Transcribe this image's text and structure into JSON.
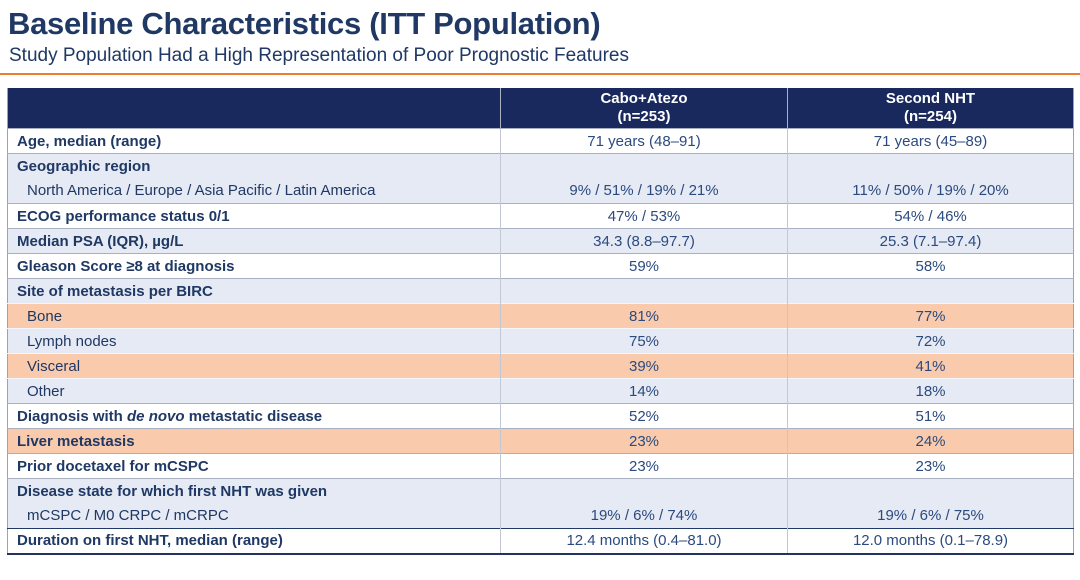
{
  "title": "Baseline Characteristics (ITT Population)",
  "subtitle": "Study Population Had a High Representation of Poor Prognostic Features",
  "colors": {
    "header_navy": "#19295E",
    "title_text": "#1F3864",
    "value_text": "#2B4A7F",
    "band_blue": "#E5EAF4",
    "band_orange": "#F9CBAC",
    "divider_orange": "#ED7D31"
  },
  "table": {
    "columns": [
      {
        "line1": "Cabo+Atezo",
        "line2": "(n=253)"
      },
      {
        "line1": "Second NHT",
        "line2": "(n=254)"
      }
    ],
    "rows": [
      {
        "label_parts": [
          {
            "text": "Age, median (range)"
          }
        ],
        "bold": true,
        "indent": false,
        "bg": "white",
        "values": [
          "71 years (48–91)",
          "71 years (45–89)"
        ]
      },
      {
        "label_parts": [
          {
            "text": "Geographic region"
          }
        ],
        "bold": true,
        "indent": false,
        "bg": "blue",
        "values": [
          "",
          ""
        ]
      },
      {
        "label_parts": [
          {
            "text": "North America / Europe / Asia Pacific / Latin America"
          }
        ],
        "bold": false,
        "indent": true,
        "bg": "blue",
        "continuation": true,
        "values": [
          "9% / 51% / 19% / 21%",
          "11% / 50% / 19% / 20%"
        ]
      },
      {
        "label_parts": [
          {
            "text": "ECOG performance status 0/1"
          }
        ],
        "bold": true,
        "indent": false,
        "bg": "white",
        "values": [
          "47% / 53%",
          "54% / 46%"
        ]
      },
      {
        "label_parts": [
          {
            "text": "Median PSA (IQR), µg/L"
          }
        ],
        "bold": true,
        "indent": false,
        "bg": "blue",
        "values": [
          "34.3 (8.8–97.7)",
          "25.3 (7.1–97.4)"
        ]
      },
      {
        "label_parts": [
          {
            "text": "Gleason Score ≥8 at diagnosis"
          }
        ],
        "bold": true,
        "indent": false,
        "bg": "white",
        "values": [
          "59%",
          "58%"
        ]
      },
      {
        "label_parts": [
          {
            "text": "Site of metastasis per BIRC"
          }
        ],
        "bold": true,
        "indent": false,
        "bg": "blue",
        "values": [
          "",
          ""
        ]
      },
      {
        "label_parts": [
          {
            "text": "Bone"
          }
        ],
        "bold": false,
        "indent": true,
        "bg": "orange",
        "group": "metastasis",
        "values": [
          "81%",
          "77%"
        ]
      },
      {
        "label_parts": [
          {
            "text": "Lymph nodes"
          }
        ],
        "bold": false,
        "indent": true,
        "bg": "blue",
        "group": "metastasis",
        "values": [
          "75%",
          "72%"
        ]
      },
      {
        "label_parts": [
          {
            "text": "Visceral"
          }
        ],
        "bold": false,
        "indent": true,
        "bg": "orange",
        "group": "metastasis",
        "values": [
          "39%",
          "41%"
        ]
      },
      {
        "label_parts": [
          {
            "text": "Other"
          }
        ],
        "bold": false,
        "indent": true,
        "bg": "blue",
        "group": "metastasis",
        "values": [
          "14%",
          "18%"
        ]
      },
      {
        "label_parts": [
          {
            "text": "Diagnosis with "
          },
          {
            "text": "de novo",
            "italic": true
          },
          {
            "text": " metastatic disease"
          }
        ],
        "bold": true,
        "indent": false,
        "bg": "white",
        "values": [
          "52%",
          "51%"
        ]
      },
      {
        "label_parts": [
          {
            "text": "Liver metastasis"
          }
        ],
        "bold": true,
        "indent": false,
        "bg": "orange",
        "values": [
          "23%",
          "24%"
        ]
      },
      {
        "label_parts": [
          {
            "text": "Prior docetaxel for mCSPC"
          }
        ],
        "bold": true,
        "indent": false,
        "bg": "white",
        "values": [
          "23%",
          "23%"
        ]
      },
      {
        "label_parts": [
          {
            "text": "Disease state for which first NHT was given"
          }
        ],
        "bold": true,
        "indent": false,
        "bg": "blue",
        "values": [
          "",
          ""
        ]
      },
      {
        "label_parts": [
          {
            "text": "mCSPC / M0 CRPC / mCRPC"
          }
        ],
        "bold": false,
        "indent": true,
        "bg": "blue",
        "continuation": true,
        "values": [
          "19% / 6% / 74%",
          "19% / 6% / 75%"
        ]
      },
      {
        "label_parts": [
          {
            "text": "Duration on first NHT, median (range)"
          }
        ],
        "bold": true,
        "indent": false,
        "bg": "white",
        "final": true,
        "values": [
          "12.4 months (0.4–81.0)",
          "12.0 months (0.1–78.9)"
        ]
      }
    ]
  }
}
